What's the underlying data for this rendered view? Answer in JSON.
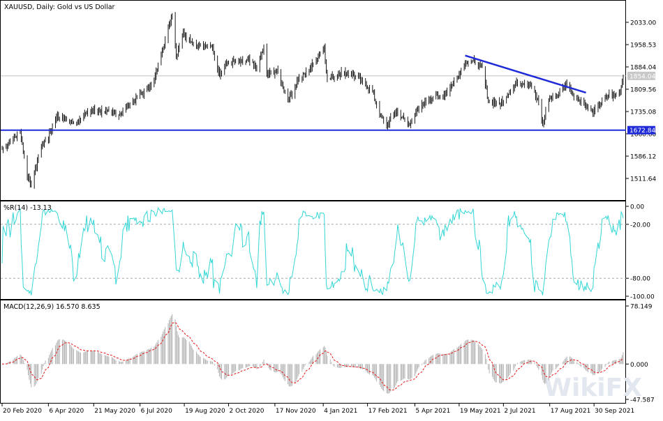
{
  "window": {
    "title": "XAUUSD, Daily:  Gold vs US Dollar"
  },
  "indicators": {
    "wr_label": "%R(14) -13.13",
    "macd_label": "MACD(12,26,9) 16.570 8.635"
  },
  "colors": {
    "candle": "#000000",
    "trendline": "#1f2ad8",
    "support": "#1f2ad8",
    "wr_line": "#33d6d6",
    "macd_hist": "#b4b4b4",
    "macd_signal": "#e8181a",
    "bid_line": "#c0c0c0",
    "watermark": "#e3e7ef"
  },
  "watermark_text": "WikiFX",
  "chart_data": [
    {
      "type": "candlestick",
      "title": "XAUUSD, Daily:  Gold vs US Dollar",
      "y_ticks": [
        "2033.00",
        "1958.53",
        "1884.04",
        "1809.56",
        "1735.08",
        "1660.60",
        "1586.12",
        "1511.64"
      ],
      "y_tick_values": [
        2033.0,
        1958.53,
        1884.04,
        1809.56,
        1735.08,
        1660.6,
        1586.12,
        1511.64
      ],
      "ylim": [
        1460,
        2100
      ],
      "bid_price": "1854.04",
      "support_level": "1672.84",
      "trendline": [
        {
          "date": "2021-05-25",
          "price": 1922
        },
        {
          "date": "2021-09-22",
          "price": 1798
        }
      ],
      "x_ticks": [
        "20 Feb 2020",
        "6 Apr 2020",
        "21 May 2020",
        "6 Jul 2020",
        "19 Aug 2020",
        "2 Oct 2020",
        "17 Nov 2020",
        "4 Jan 2021",
        "17 Feb 2021",
        "5 Apr 2021",
        "19 May 2021",
        "2 Jul 2021",
        "17 Aug 2021",
        "30 Sep 2021"
      ],
      "close_path": [
        [
          "2020-02-20",
          1612
        ],
        [
          "2020-03-01",
          1640
        ],
        [
          "2020-03-09",
          1670
        ],
        [
          "2020-03-16",
          1520
        ],
        [
          "2020-03-20",
          1490
        ],
        [
          "2020-03-30",
          1620
        ],
        [
          "2020-04-06",
          1650
        ],
        [
          "2020-04-14",
          1720
        ],
        [
          "2020-04-22",
          1710
        ],
        [
          "2020-05-01",
          1695
        ],
        [
          "2020-05-18",
          1740
        ],
        [
          "2020-06-01",
          1735
        ],
        [
          "2020-06-15",
          1725
        ],
        [
          "2020-06-29",
          1770
        ],
        [
          "2020-07-10",
          1800
        ],
        [
          "2020-07-20",
          1840
        ],
        [
          "2020-07-27",
          1930
        ],
        [
          "2020-08-04",
          2020
        ],
        [
          "2020-08-07",
          2060
        ],
        [
          "2020-08-11",
          1920
        ],
        [
          "2020-08-18",
          2000
        ],
        [
          "2020-08-28",
          1960
        ],
        [
          "2020-09-09",
          1950
        ],
        [
          "2020-09-15",
          1960
        ],
        [
          "2020-09-23",
          1860
        ],
        [
          "2020-10-01",
          1900
        ],
        [
          "2020-10-12",
          1900
        ],
        [
          "2020-10-22",
          1905
        ],
        [
          "2020-10-30",
          1880
        ],
        [
          "2020-11-06",
          1950
        ],
        [
          "2020-11-09",
          1860
        ],
        [
          "2020-11-20",
          1870
        ],
        [
          "2020-11-30",
          1770
        ],
        [
          "2020-12-10",
          1840
        ],
        [
          "2020-12-21",
          1875
        ],
        [
          "2021-01-05",
          1950
        ],
        [
          "2021-01-08",
          1840
        ],
        [
          "2021-01-22",
          1865
        ],
        [
          "2021-02-01",
          1860
        ],
        [
          "2021-02-10",
          1840
        ],
        [
          "2021-02-22",
          1800
        ],
        [
          "2021-03-01",
          1725
        ],
        [
          "2021-03-08",
          1690
        ],
        [
          "2021-03-18",
          1735
        ],
        [
          "2021-03-30",
          1690
        ],
        [
          "2021-04-08",
          1740
        ],
        [
          "2021-04-20",
          1780
        ],
        [
          "2021-05-04",
          1790
        ],
        [
          "2021-05-15",
          1840
        ],
        [
          "2021-05-26",
          1905
        ],
        [
          "2021-06-04",
          1900
        ],
        [
          "2021-06-11",
          1880
        ],
        [
          "2021-06-17",
          1770
        ],
        [
          "2021-06-29",
          1760
        ],
        [
          "2021-07-15",
          1830
        ],
        [
          "2021-07-29",
          1830
        ],
        [
          "2021-08-06",
          1760
        ],
        [
          "2021-08-10",
          1685
        ],
        [
          "2021-08-16",
          1780
        ],
        [
          "2021-08-25",
          1790
        ],
        [
          "2021-09-03",
          1830
        ],
        [
          "2021-09-10",
          1790
        ],
        [
          "2021-09-20",
          1760
        ],
        [
          "2021-09-29",
          1730
        ],
        [
          "2021-10-06",
          1760
        ],
        [
          "2021-10-14",
          1790
        ],
        [
          "2021-10-20",
          1785
        ],
        [
          "2021-10-26",
          1800
        ],
        [
          "2021-10-29",
          1860
        ]
      ]
    },
    {
      "type": "line",
      "title": "%R(14) -13.13",
      "y_ticks": [
        "0.00",
        "-20.00",
        "-80.00",
        "-100.00"
      ],
      "y_tick_values": [
        0,
        -20,
        -80,
        -100
      ],
      "ylim": [
        -100,
        0
      ],
      "levels": [
        -20,
        -80
      ],
      "last_value": -13.13
    },
    {
      "type": "bar",
      "title": "MACD(12,26,9) 16.570 8.635",
      "y_ticks": [
        "78.149",
        "0.000",
        "-47.587"
      ],
      "y_tick_values": [
        78.149,
        0,
        -47.587
      ],
      "ylim": [
        -47.587,
        78.149
      ],
      "last_macd": 16.57,
      "last_signal": 8.635
    }
  ]
}
